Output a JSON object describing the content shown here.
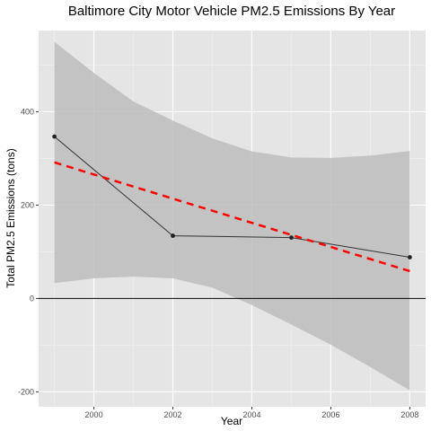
{
  "chart_data": {
    "type": "line",
    "title": "Baltimore City Motor Vehicle PM2.5 Emissions By Year",
    "xlabel": "Year",
    "ylabel": "Total PM2.5 Emissions (tons)",
    "xlim": [
      1998.6,
      2008.4
    ],
    "ylim": [
      -232,
      574
    ],
    "x_ticks": [
      2000,
      2002,
      2004,
      2006,
      2008
    ],
    "x_tick_labels": [
      "2000",
      "2002",
      "2004",
      "2006",
      "2008"
    ],
    "y_ticks": [
      -200,
      0,
      200,
      400
    ],
    "y_tick_labels": [
      "-200",
      "0",
      "200",
      "400"
    ],
    "grid": true,
    "background": "#e5e5e5",
    "hline": 0,
    "series": [
      {
        "kind": "points-and-line",
        "color": "#333333",
        "x": [
          1999,
          2002,
          2005,
          2008
        ],
        "y": [
          346.8,
          134.3,
          130.4,
          88.3
        ]
      },
      {
        "kind": "linear-fit",
        "color": "#ff0000",
        "style": "dashed",
        "x": [
          1999,
          2008
        ],
        "y": [
          291.5,
          58.5
        ]
      }
    ],
    "confidence_band": {
      "color": "#bdbdbd",
      "x": [
        1999,
        2000,
        2001,
        2002,
        2003,
        2004,
        2005,
        2006,
        2007,
        2008
      ],
      "lower": [
        33,
        43,
        47,
        43,
        23,
        -14,
        -56,
        -99,
        -147,
        -197
      ],
      "upper": [
        550,
        483,
        422,
        381,
        343,
        315,
        302,
        301,
        306,
        316
      ]
    }
  }
}
